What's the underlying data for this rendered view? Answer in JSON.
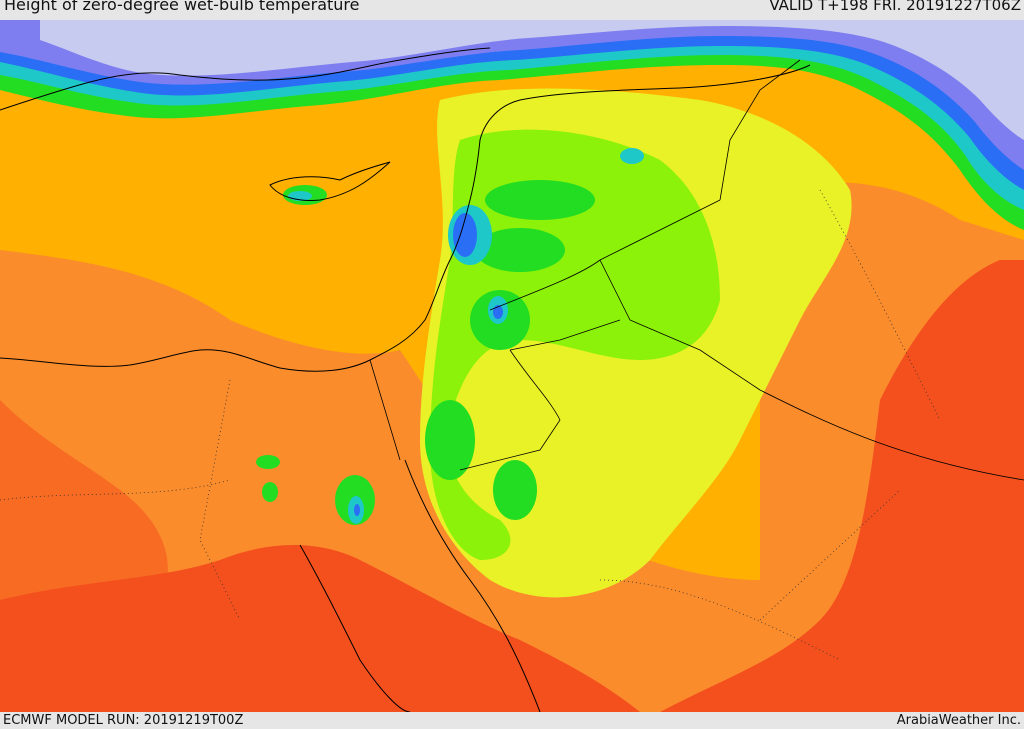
{
  "header": {
    "title": "Height of zero-degree wet-bulb temperature",
    "valid": "VALID T+198 FRI. 20191227T06Z"
  },
  "footer": {
    "model_run": "ECMWF MODEL RUN: 20191219T00Z",
    "credit": "ArabiaWeather Inc."
  },
  "palette": {
    "sea_high": "#ffb000",
    "land_high": "#fb8c2c",
    "desert_high": "#f4501e",
    "mid": "#e9f227",
    "low_green": "#8cf20a",
    "green": "#22dd22",
    "cyan": "#1fc8c8",
    "blue": "#2a6ef5",
    "violet": "#7e7ef0",
    "lavender": "#c8cbf0",
    "border_line": "#000000"
  }
}
